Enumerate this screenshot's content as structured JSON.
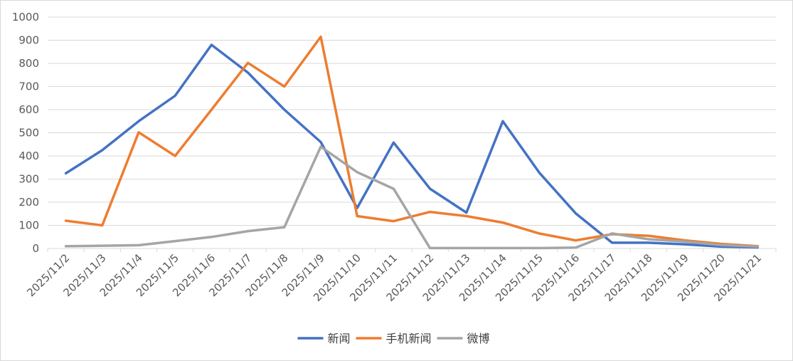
{
  "chart_data": {
    "type": "line",
    "title": "",
    "xlabel": "",
    "ylabel": "",
    "ylim": [
      0,
      1000
    ],
    "yticks": [
      0,
      100,
      200,
      300,
      400,
      500,
      600,
      700,
      800,
      900,
      1000
    ],
    "grid": true,
    "legend_position": "bottom",
    "x": [
      "2025/11/2",
      "2025/11/3",
      "2025/11/4",
      "2025/11/5",
      "2025/11/6",
      "2025/11/7",
      "2025/11/8",
      "2025/11/9",
      "2025/11/10",
      "2025/11/11",
      "2025/11/12",
      "2025/11/13",
      "2025/11/14",
      "2025/11/15",
      "2025/11/16",
      "2025/11/17",
      "2025/11/18",
      "2025/11/19",
      "2025/11/20",
      "2025/11/21"
    ],
    "series": [
      {
        "name": "新闻",
        "color": "#4472c4",
        "values": [
          325,
          425,
          550,
          660,
          880,
          760,
          600,
          460,
          175,
          458,
          258,
          155,
          550,
          328,
          152,
          25,
          25,
          18,
          8,
          5
        ]
      },
      {
        "name": "手机新闻",
        "color": "#ed7d31",
        "values": [
          120,
          100,
          502,
          400,
          600,
          802,
          700,
          915,
          140,
          118,
          158,
          140,
          112,
          65,
          35,
          62,
          55,
          35,
          20,
          10
        ]
      },
      {
        "name": "微博",
        "color": "#a5a5a5",
        "values": [
          10,
          12,
          14,
          32,
          50,
          75,
          92,
          440,
          330,
          258,
          2,
          2,
          2,
          2,
          4,
          65,
          40,
          30,
          15,
          8
        ]
      }
    ]
  }
}
